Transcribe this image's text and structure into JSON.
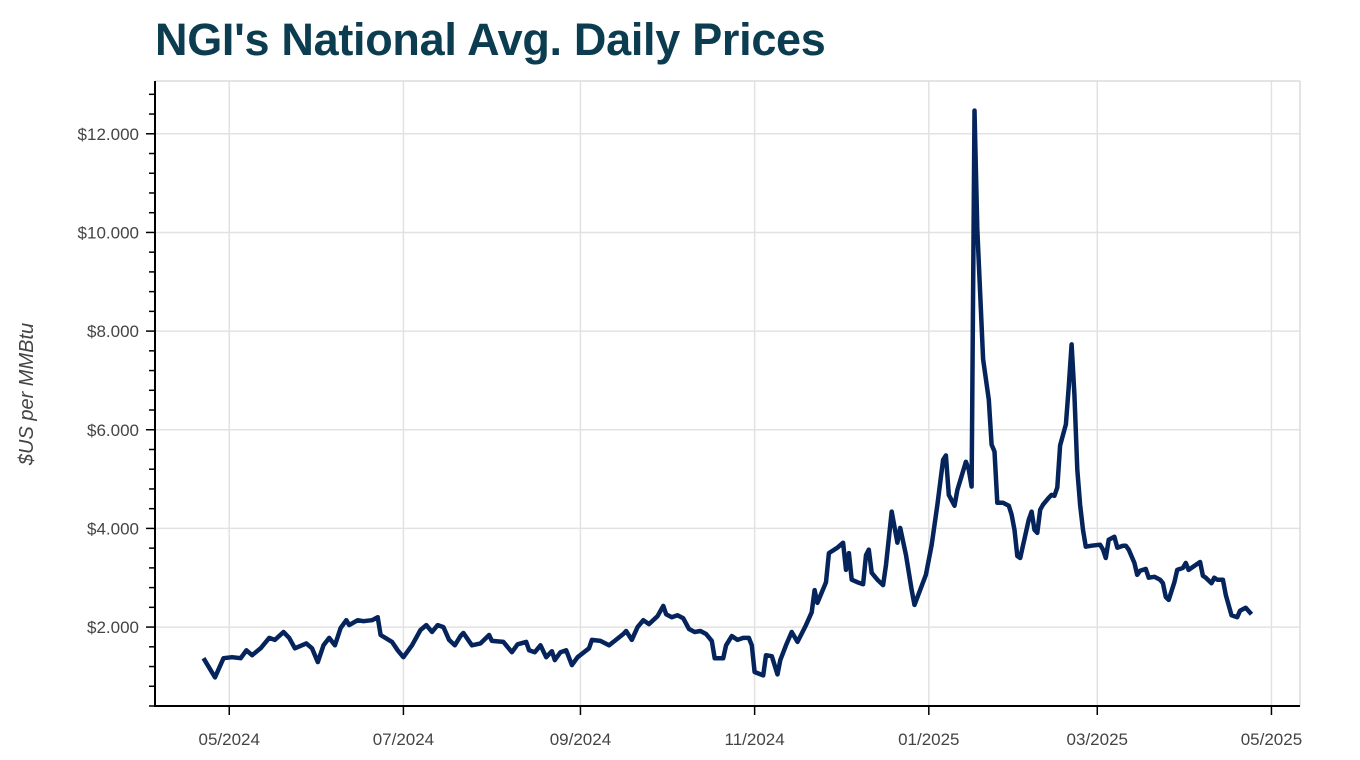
{
  "chart_data": {
    "type": "line",
    "title": "NGI's National Avg. Daily Prices",
    "xlabel": "",
    "ylabel": "$US per MMBtu",
    "xlim": [
      "2024-04-05",
      "2025-05-11"
    ],
    "ylim": [
      0.4,
      13.07
    ],
    "x_ticks": [
      "05/2024",
      "07/2024",
      "09/2024",
      "11/2024",
      "01/2025",
      "03/2025",
      "05/2025"
    ],
    "x_tick_dates": [
      "2024-05-01",
      "2024-07-01",
      "2024-09-01",
      "2024-11-01",
      "2025-01-01",
      "2025-03-01",
      "2025-05-01"
    ],
    "y_ticks": [
      2,
      4,
      6,
      8,
      10,
      12
    ],
    "y_tick_labels": [
      "$2.000",
      "$4.000",
      "$6.000",
      "$8.000",
      "$10.000",
      "$12.000"
    ],
    "y_minor_step": 0.4,
    "grid": true,
    "line_color": "#06245c",
    "series": [
      {
        "points": [
          [
            "2024-04-22",
            1.37
          ],
          [
            "2024-04-26",
            0.98
          ],
          [
            "2024-04-29",
            1.37
          ],
          [
            "2024-05-02",
            1.39
          ],
          [
            "2024-05-05",
            1.37
          ],
          [
            "2024-05-07",
            1.53
          ],
          [
            "2024-05-09",
            1.43
          ],
          [
            "2024-05-12",
            1.57
          ],
          [
            "2024-05-15",
            1.78
          ],
          [
            "2024-05-17",
            1.74
          ],
          [
            "2024-05-20",
            1.9
          ],
          [
            "2024-05-22",
            1.78
          ],
          [
            "2024-05-24",
            1.57
          ],
          [
            "2024-05-28",
            1.67
          ],
          [
            "2024-05-30",
            1.57
          ],
          [
            "2024-06-01",
            1.29
          ],
          [
            "2024-06-03",
            1.63
          ],
          [
            "2024-06-05",
            1.78
          ],
          [
            "2024-06-07",
            1.63
          ],
          [
            "2024-06-09",
            1.98
          ],
          [
            "2024-06-11",
            2.14
          ],
          [
            "2024-06-12",
            2.04
          ],
          [
            "2024-06-15",
            2.14
          ],
          [
            "2024-06-17",
            2.12
          ],
          [
            "2024-06-20",
            2.14
          ],
          [
            "2024-06-22",
            2.2
          ],
          [
            "2024-06-23",
            1.84
          ],
          [
            "2024-06-27",
            1.7
          ],
          [
            "2024-06-29",
            1.53
          ],
          [
            "2024-07-01",
            1.39
          ],
          [
            "2024-07-04",
            1.63
          ],
          [
            "2024-07-07",
            1.94
          ],
          [
            "2024-07-09",
            2.04
          ],
          [
            "2024-07-11",
            1.9
          ],
          [
            "2024-07-13",
            2.04
          ],
          [
            "2024-07-15",
            2.0
          ],
          [
            "2024-07-17",
            1.74
          ],
          [
            "2024-07-19",
            1.63
          ],
          [
            "2024-07-21",
            1.82
          ],
          [
            "2024-07-22",
            1.88
          ],
          [
            "2024-07-25",
            1.63
          ],
          [
            "2024-07-28",
            1.67
          ],
          [
            "2024-07-31",
            1.84
          ],
          [
            "2024-08-01",
            1.72
          ],
          [
            "2024-08-05",
            1.7
          ],
          [
            "2024-08-08",
            1.49
          ],
          [
            "2024-08-10",
            1.65
          ],
          [
            "2024-08-13",
            1.7
          ],
          [
            "2024-08-14",
            1.53
          ],
          [
            "2024-08-16",
            1.49
          ],
          [
            "2024-08-18",
            1.63
          ],
          [
            "2024-08-20",
            1.39
          ],
          [
            "2024-08-22",
            1.51
          ],
          [
            "2024-08-23",
            1.33
          ],
          [
            "2024-08-25",
            1.49
          ],
          [
            "2024-08-27",
            1.53
          ],
          [
            "2024-08-29",
            1.23
          ],
          [
            "2024-08-31",
            1.39
          ],
          [
            "2024-09-04",
            1.57
          ],
          [
            "2024-09-05",
            1.74
          ],
          [
            "2024-09-08",
            1.72
          ],
          [
            "2024-09-11",
            1.63
          ],
          [
            "2024-09-13",
            1.72
          ],
          [
            "2024-09-16",
            1.86
          ],
          [
            "2024-09-17",
            1.92
          ],
          [
            "2024-09-19",
            1.74
          ],
          [
            "2024-09-21",
            2.0
          ],
          [
            "2024-09-23",
            2.14
          ],
          [
            "2024-09-25",
            2.06
          ],
          [
            "2024-09-28",
            2.22
          ],
          [
            "2024-09-30",
            2.43
          ],
          [
            "2024-10-01",
            2.26
          ],
          [
            "2024-10-03",
            2.2
          ],
          [
            "2024-10-05",
            2.24
          ],
          [
            "2024-10-07",
            2.18
          ],
          [
            "2024-10-09",
            1.96
          ],
          [
            "2024-10-11",
            1.9
          ],
          [
            "2024-10-13",
            1.92
          ],
          [
            "2024-10-15",
            1.86
          ],
          [
            "2024-10-17",
            1.72
          ],
          [
            "2024-10-18",
            1.37
          ],
          [
            "2024-10-21",
            1.37
          ],
          [
            "2024-10-22",
            1.63
          ],
          [
            "2024-10-24",
            1.82
          ],
          [
            "2024-10-26",
            1.74
          ],
          [
            "2024-10-28",
            1.78
          ],
          [
            "2024-10-30",
            1.78
          ],
          [
            "2024-10-31",
            1.63
          ],
          [
            "2024-11-01",
            1.09
          ],
          [
            "2024-11-04",
            1.02
          ],
          [
            "2024-11-05",
            1.43
          ],
          [
            "2024-11-07",
            1.41
          ],
          [
            "2024-11-09",
            1.04
          ],
          [
            "2024-11-10",
            1.33
          ],
          [
            "2024-11-12",
            1.63
          ],
          [
            "2024-11-14",
            1.9
          ],
          [
            "2024-11-16",
            1.7
          ],
          [
            "2024-11-19",
            2.04
          ],
          [
            "2024-11-21",
            2.3
          ],
          [
            "2024-11-22",
            2.75
          ],
          [
            "2024-11-23",
            2.49
          ],
          [
            "2024-11-26",
            2.91
          ],
          [
            "2024-11-27",
            3.5
          ],
          [
            "2024-11-30",
            3.61
          ],
          [
            "2024-12-02",
            3.71
          ],
          [
            "2024-12-03",
            3.16
          ],
          [
            "2024-12-04",
            3.5
          ],
          [
            "2024-12-05",
            2.96
          ],
          [
            "2024-12-07",
            2.91
          ],
          [
            "2024-12-09",
            2.87
          ],
          [
            "2024-12-10",
            3.46
          ],
          [
            "2024-12-11",
            3.57
          ],
          [
            "2024-12-12",
            3.1
          ],
          [
            "2024-12-14",
            2.96
          ],
          [
            "2024-12-16",
            2.85
          ],
          [
            "2024-12-17",
            3.26
          ],
          [
            "2024-12-19",
            4.34
          ],
          [
            "2024-12-20",
            4.03
          ],
          [
            "2024-12-21",
            3.71
          ],
          [
            "2024-12-22",
            4.01
          ],
          [
            "2024-12-24",
            3.46
          ],
          [
            "2024-12-26",
            2.75
          ],
          [
            "2024-12-27",
            2.45
          ],
          [
            "2024-12-30",
            2.91
          ],
          [
            "2024-12-31",
            3.06
          ],
          [
            "2025-01-02",
            3.67
          ],
          [
            "2025-01-04",
            4.48
          ],
          [
            "2025-01-06",
            5.39
          ],
          [
            "2025-01-07",
            5.48
          ],
          [
            "2025-01-08",
            4.68
          ],
          [
            "2025-01-10",
            4.46
          ],
          [
            "2025-01-11",
            4.78
          ],
          [
            "2025-01-14",
            5.35
          ],
          [
            "2025-01-15",
            5.19
          ],
          [
            "2025-01-16",
            4.85
          ],
          [
            "2025-01-17",
            12.47
          ],
          [
            "2025-01-18",
            10.07
          ],
          [
            "2025-01-20",
            7.43
          ],
          [
            "2025-01-22",
            6.61
          ],
          [
            "2025-01-23",
            5.7
          ],
          [
            "2025-01-24",
            5.56
          ],
          [
            "2025-01-25",
            4.52
          ],
          [
            "2025-01-27",
            4.52
          ],
          [
            "2025-01-29",
            4.46
          ],
          [
            "2025-01-30",
            4.28
          ],
          [
            "2025-01-31",
            3.97
          ],
          [
            "2025-02-01",
            3.44
          ],
          [
            "2025-02-02",
            3.4
          ],
          [
            "2025-02-05",
            4.17
          ],
          [
            "2025-02-06",
            4.34
          ],
          [
            "2025-02-07",
            3.97
          ],
          [
            "2025-02-08",
            3.91
          ],
          [
            "2025-02-09",
            4.38
          ],
          [
            "2025-02-10",
            4.48
          ],
          [
            "2025-02-12",
            4.62
          ],
          [
            "2025-02-13",
            4.68
          ],
          [
            "2025-02-14",
            4.66
          ],
          [
            "2025-02-15",
            4.83
          ],
          [
            "2025-02-16",
            5.68
          ],
          [
            "2025-02-18",
            6.11
          ],
          [
            "2025-02-19",
            6.86
          ],
          [
            "2025-02-20",
            7.73
          ],
          [
            "2025-02-21",
            6.72
          ],
          [
            "2025-02-22",
            5.19
          ],
          [
            "2025-02-23",
            4.48
          ],
          [
            "2025-02-24",
            3.97
          ],
          [
            "2025-02-25",
            3.63
          ],
          [
            "2025-02-27",
            3.65
          ],
          [
            "2025-03-02",
            3.67
          ],
          [
            "2025-03-03",
            3.57
          ],
          [
            "2025-03-04",
            3.4
          ],
          [
            "2025-03-05",
            3.77
          ],
          [
            "2025-03-07",
            3.83
          ],
          [
            "2025-03-08",
            3.61
          ],
          [
            "2025-03-10",
            3.65
          ],
          [
            "2025-03-11",
            3.65
          ],
          [
            "2025-03-12",
            3.57
          ],
          [
            "2025-03-14",
            3.3
          ],
          [
            "2025-03-15",
            3.06
          ],
          [
            "2025-03-16",
            3.14
          ],
          [
            "2025-03-18",
            3.18
          ],
          [
            "2025-03-19",
            3.0
          ],
          [
            "2025-03-21",
            3.02
          ],
          [
            "2025-03-23",
            2.96
          ],
          [
            "2025-03-24",
            2.89
          ],
          [
            "2025-03-25",
            2.61
          ],
          [
            "2025-03-26",
            2.55
          ],
          [
            "2025-03-28",
            2.91
          ],
          [
            "2025-03-29",
            3.16
          ],
          [
            "2025-03-31",
            3.2
          ],
          [
            "2025-04-01",
            3.3
          ],
          [
            "2025-04-02",
            3.16
          ],
          [
            "2025-04-04",
            3.24
          ],
          [
            "2025-04-06",
            3.32
          ],
          [
            "2025-04-07",
            3.04
          ],
          [
            "2025-04-08",
            3.0
          ],
          [
            "2025-04-10",
            2.89
          ],
          [
            "2025-04-11",
            3.0
          ],
          [
            "2025-04-12",
            2.96
          ],
          [
            "2025-04-14",
            2.96
          ],
          [
            "2025-04-15",
            2.65
          ],
          [
            "2025-04-17",
            2.24
          ],
          [
            "2025-04-19",
            2.2
          ],
          [
            "2025-04-20",
            2.33
          ],
          [
            "2025-04-22",
            2.39
          ],
          [
            "2025-04-24",
            2.26
          ]
        ]
      }
    ]
  }
}
